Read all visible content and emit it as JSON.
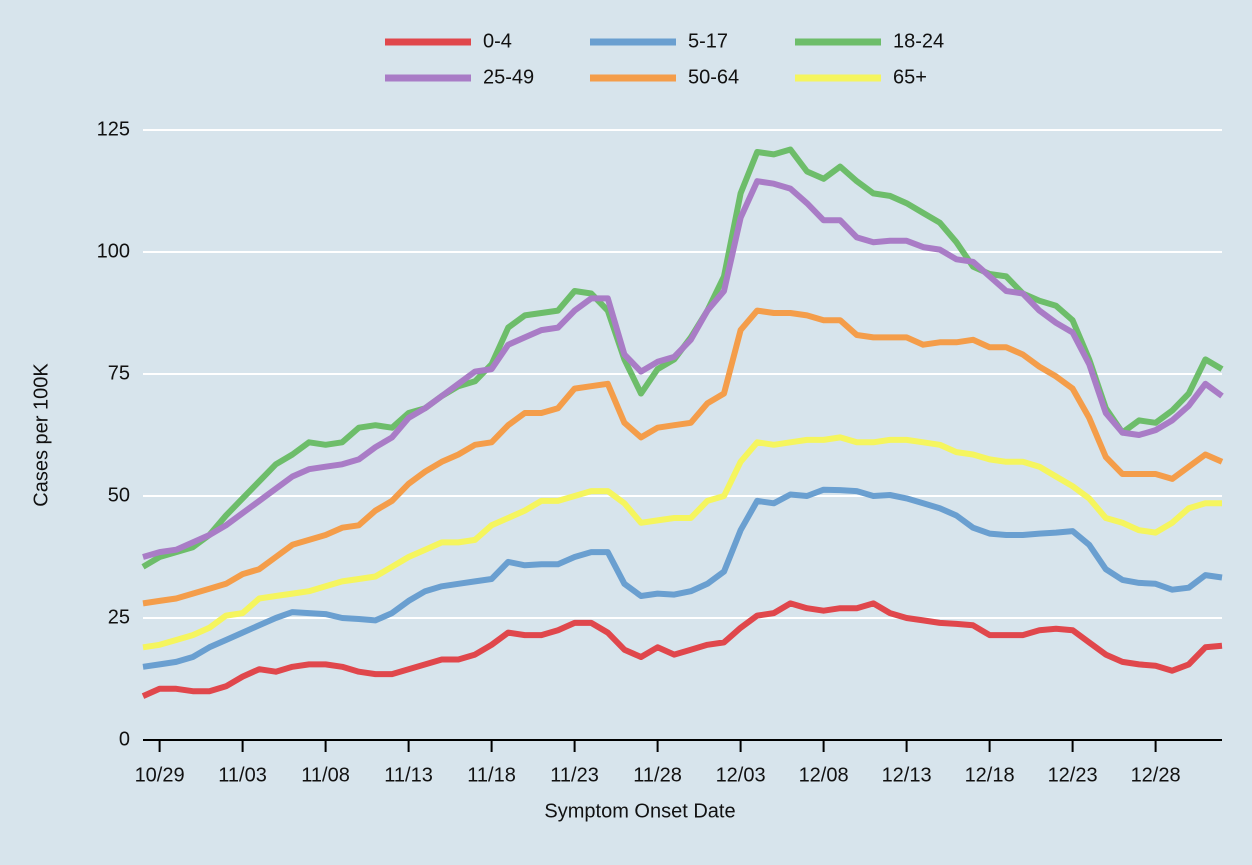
{
  "chart_data": {
    "type": "line",
    "x_label": "Symptom Onset Date",
    "y_label": "Cases per 100K",
    "categories": [
      null,
      "10/29",
      null,
      null,
      null,
      null,
      "11/03",
      null,
      null,
      null,
      null,
      "11/08",
      null,
      null,
      null,
      null,
      "11/13",
      null,
      null,
      null,
      null,
      "11/18",
      null,
      null,
      null,
      null,
      "11/23",
      null,
      null,
      null,
      null,
      "11/28",
      null,
      null,
      null,
      null,
      "12/03",
      null,
      null,
      null,
      null,
      "12/08",
      null,
      null,
      null,
      null,
      "12/13",
      null,
      null,
      null,
      null,
      "12/18",
      null,
      null,
      null,
      null,
      "12/23",
      null,
      null,
      null,
      null,
      "12/28",
      null,
      null,
      null,
      null
    ],
    "series": [
      {
        "name": "0-4",
        "color": "#e0474c",
        "values": [
          9,
          10.5,
          10.5,
          10,
          10,
          11,
          13,
          14.5,
          14,
          15,
          15.5,
          15.5,
          15,
          14,
          13.5,
          13.5,
          14.5,
          15.5,
          16.5,
          16.5,
          17.5,
          19.5,
          22,
          21.5,
          21.5,
          22.5,
          24,
          24,
          22,
          18.5,
          17,
          19,
          17.5,
          18.5,
          19.5,
          20,
          23,
          25.5,
          26,
          28,
          27,
          26.5,
          27,
          27,
          28,
          26,
          25,
          24.5,
          24,
          23.8,
          23.5,
          21.5,
          21.5,
          21.5,
          22.5,
          22.8,
          22.5,
          20,
          17.5,
          16,
          15.5,
          15.2,
          14.2,
          15.5,
          19,
          19.3
        ]
      },
      {
        "name": "5-17",
        "color": "#6a9fd0",
        "values": [
          15,
          15.5,
          16,
          17,
          19,
          20.5,
          22,
          23.5,
          25,
          26.2,
          26,
          25.8,
          25,
          24.8,
          24.5,
          26,
          28.5,
          30.5,
          31.5,
          32,
          32.5,
          33,
          36.5,
          35.8,
          36,
          36,
          37.5,
          38.5,
          38.5,
          32,
          29.5,
          30,
          29.8,
          30.5,
          32,
          34.5,
          43,
          49,
          48.5,
          50.3,
          50,
          51.3,
          51.2,
          51,
          50,
          50.2,
          49.5,
          48.5,
          47.5,
          46,
          43.5,
          42.3,
          42,
          42,
          42.3,
          42.5,
          42.8,
          40,
          35,
          32.8,
          32.2,
          32,
          30.8,
          31.2,
          33.8,
          33.3
        ]
      },
      {
        "name": "18-24",
        "color": "#6dbd6a",
        "values": [
          35.5,
          37.5,
          38.5,
          39.5,
          42,
          46,
          49.5,
          53,
          56.5,
          58.5,
          61,
          60.5,
          61,
          64,
          64.5,
          64,
          67,
          68,
          70.5,
          72.5,
          73.5,
          77,
          84.5,
          87,
          87.5,
          88,
          92,
          91.5,
          88,
          78,
          71,
          76,
          78,
          82.5,
          88,
          95,
          112,
          120.5,
          120,
          121,
          116.5,
          115,
          117.5,
          114.5,
          112,
          111.5,
          110,
          108,
          106,
          102,
          97,
          95.5,
          95,
          91.5,
          90,
          89,
          86,
          78,
          68,
          63,
          65.5,
          65,
          67.5,
          71,
          78,
          76
        ]
      },
      {
        "name": "25-49",
        "color": "#a97cc6",
        "values": [
          37.5,
          38.5,
          39,
          40.5,
          42,
          44,
          46.5,
          49,
          51.5,
          54,
          55.5,
          56,
          56.5,
          57.5,
          60,
          62,
          66,
          68,
          70.5,
          73,
          75.5,
          76,
          81,
          82.5,
          84,
          84.5,
          88,
          90.5,
          90.5,
          79,
          75.5,
          77.5,
          78.5,
          82,
          88,
          92,
          107,
          114.5,
          114,
          113,
          110,
          106.5,
          106.5,
          103,
          102,
          102.3,
          102.3,
          101,
          100.5,
          98.5,
          98,
          95,
          92,
          91.5,
          88,
          85.5,
          83.5,
          77,
          67,
          63,
          62.5,
          63.5,
          65.5,
          68.5,
          73,
          70.5
        ]
      },
      {
        "name": "50-64",
        "color": "#f49d4a",
        "values": [
          28,
          28.5,
          29,
          30,
          31,
          32,
          34,
          35,
          37.5,
          40,
          41,
          42,
          43.5,
          44,
          47,
          49,
          52.5,
          55,
          57,
          58.5,
          60.5,
          61,
          64.5,
          67,
          67,
          68,
          72,
          72.5,
          73,
          65,
          62,
          64,
          64.5,
          65,
          69,
          71,
          84,
          88,
          87.5,
          87.5,
          87,
          86,
          86,
          83,
          82.5,
          82.5,
          82.5,
          81,
          81.5,
          81.5,
          82,
          80.5,
          80.5,
          79,
          76.5,
          74.5,
          72,
          66,
          58,
          54.5,
          54.5,
          54.5,
          53.5,
          56,
          58.5,
          57
        ]
      },
      {
        "name": "65+",
        "color": "#f5f55e",
        "values": [
          19,
          19.5,
          20.5,
          21.5,
          23,
          25.5,
          26,
          29,
          29.5,
          30,
          30.5,
          31.5,
          32.5,
          33,
          33.5,
          35.5,
          37.5,
          39,
          40.5,
          40.5,
          41,
          44,
          45.5,
          47,
          49,
          49,
          50,
          51,
          51,
          48.5,
          44.5,
          45,
          45.5,
          45.5,
          49,
          50,
          57,
          61,
          60.5,
          61,
          61.5,
          61.5,
          62,
          61,
          61,
          61.5,
          61.5,
          61,
          60.5,
          59,
          58.5,
          57.5,
          57,
          57,
          56,
          54,
          52,
          49.5,
          45.5,
          44.5,
          43,
          42.5,
          44.5,
          47.5,
          48.5,
          48.5
        ]
      }
    ],
    "ylim": [
      0,
      125
    ],
    "yticks": [
      0,
      25,
      50,
      75,
      100,
      125
    ],
    "grid": true,
    "legend": "top"
  }
}
